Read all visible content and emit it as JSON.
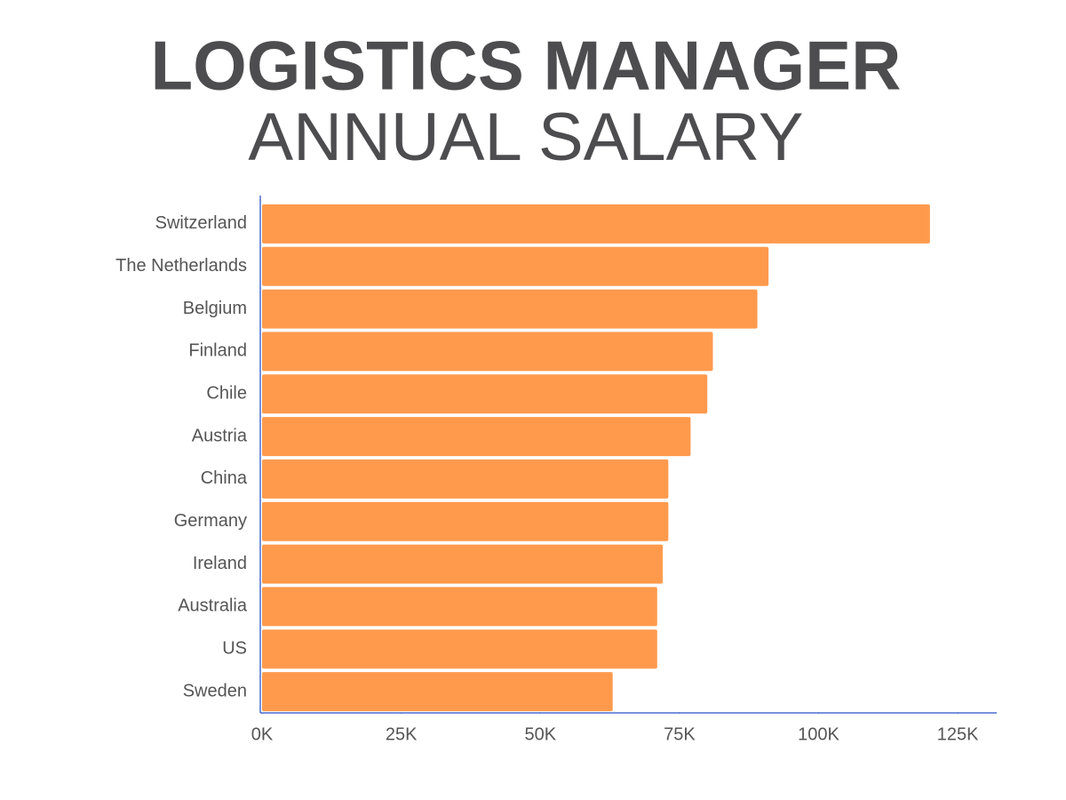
{
  "chart_data": {
    "type": "bar",
    "orientation": "horizontal",
    "title": "LOGISTICS MANAGER",
    "subtitle": "ANNUAL SALARY",
    "categories": [
      "Switzerland",
      "The Netherlands",
      "Belgium",
      "Finland",
      "Chile",
      "Austria",
      "China",
      "Germany",
      "Ireland",
      "Australia",
      "US",
      "Sweden"
    ],
    "values": [
      120000,
      91000,
      89000,
      81000,
      80000,
      77000,
      73000,
      73000,
      72000,
      71000,
      71000,
      63000
    ],
    "color": "#ff9a4d",
    "axis_color": "#4a6fd0",
    "xlim": [
      0,
      132000
    ],
    "xticks": [
      {
        "value": 0,
        "label": "0K"
      },
      {
        "value": 25000,
        "label": "25K"
      },
      {
        "value": 50000,
        "label": "50K"
      },
      {
        "value": 75000,
        "label": "75K"
      },
      {
        "value": 100000,
        "label": "100K"
      },
      {
        "value": 125000,
        "label": "125K"
      }
    ],
    "grid": false
  }
}
